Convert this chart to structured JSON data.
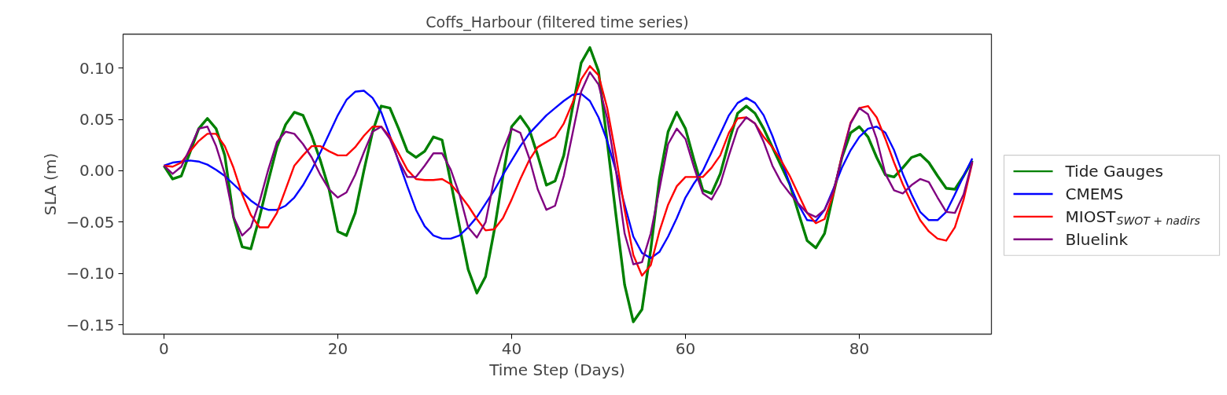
{
  "chart_data": {
    "type": "line",
    "title": "Coffs_Harbour (filtered time series)",
    "xlabel": "Time Step (Days)",
    "ylabel": "SLA (m)",
    "x": [
      0,
      1,
      2,
      3,
      4,
      5,
      6,
      7,
      8,
      9,
      10,
      11,
      12,
      13,
      14,
      15,
      16,
      17,
      18,
      19,
      20,
      21,
      22,
      23,
      24,
      25,
      26,
      27,
      28,
      29,
      30,
      31,
      32,
      33,
      34,
      35,
      36,
      37,
      38,
      39,
      40,
      41,
      42,
      43,
      44,
      45,
      46,
      47,
      48,
      49,
      50,
      51,
      52,
      53,
      54,
      55,
      56,
      57,
      58,
      59,
      60,
      61,
      62,
      63,
      64,
      65,
      66,
      67,
      68,
      69,
      70,
      71,
      72,
      73,
      74,
      75,
      76,
      77,
      78,
      79,
      80,
      81,
      82,
      83,
      84,
      85,
      86,
      87,
      88,
      89,
      90,
      91,
      92,
      93
    ],
    "xlim": [
      -4.7,
      95.2
    ],
    "xticks": [
      0,
      20,
      40,
      60,
      80
    ],
    "ylim": [
      -0.159,
      0.133
    ],
    "yticks": [
      {
        "value": -0.15,
        "label": "−0.15"
      },
      {
        "value": -0.1,
        "label": "−0.10"
      },
      {
        "value": -0.05,
        "label": "−0.05"
      },
      {
        "value": 0,
        "label": "0.00"
      },
      {
        "value": 0.05,
        "label": "0.05"
      },
      {
        "value": 0.1,
        "label": "0.10"
      }
    ],
    "grid": false,
    "legend": "right",
    "line_style": "solid",
    "series": [
      {
        "name": "Tide Gauges",
        "color": "#008000",
        "values": [
          0.005,
          -0.008,
          -0.005,
          0.018,
          0.041,
          0.051,
          0.041,
          0.015,
          -0.045,
          -0.074,
          -0.076,
          -0.045,
          -0.01,
          0.023,
          0.045,
          0.057,
          0.054,
          0.034,
          0.01,
          -0.018,
          -0.059,
          -0.063,
          -0.041,
          0.0,
          0.038,
          0.063,
          0.061,
          0.041,
          0.019,
          0.013,
          0.019,
          0.033,
          0.03,
          -0.011,
          -0.054,
          -0.096,
          -0.119,
          -0.103,
          -0.058,
          -0.005,
          0.043,
          0.053,
          0.041,
          0.015,
          -0.014,
          -0.01,
          0.015,
          0.061,
          0.105,
          0.12,
          0.097,
          0.028,
          -0.043,
          -0.111,
          -0.147,
          -0.135,
          -0.077,
          -0.008,
          0.038,
          0.057,
          0.041,
          0.01,
          -0.019,
          -0.022,
          -0.003,
          0.028,
          0.056,
          0.063,
          0.056,
          0.041,
          0.023,
          0.005,
          -0.013,
          -0.041,
          -0.068,
          -0.075,
          -0.061,
          -0.023,
          0.013,
          0.037,
          0.043,
          0.033,
          0.013,
          -0.004,
          -0.006,
          0.003,
          0.013,
          0.016,
          0.008,
          -0.005,
          -0.017,
          -0.018,
          -0.005,
          0.01
        ]
      },
      {
        "name": "CMEMS",
        "color": "#0000ff",
        "values": [
          0.005,
          0.008,
          0.009,
          0.01,
          0.009,
          0.006,
          0.001,
          -0.005,
          -0.013,
          -0.021,
          -0.029,
          -0.035,
          -0.038,
          -0.038,
          -0.034,
          -0.026,
          -0.014,
          0.001,
          0.018,
          0.036,
          0.054,
          0.069,
          0.077,
          0.078,
          0.071,
          0.057,
          0.034,
          0.009,
          -0.015,
          -0.038,
          -0.054,
          -0.063,
          -0.066,
          -0.066,
          -0.063,
          -0.055,
          -0.045,
          -0.032,
          -0.019,
          -0.004,
          0.01,
          0.024,
          0.036,
          0.045,
          0.054,
          0.061,
          0.068,
          0.074,
          0.075,
          0.068,
          0.052,
          0.029,
          0.0,
          -0.033,
          -0.064,
          -0.08,
          -0.085,
          -0.079,
          -0.064,
          -0.046,
          -0.026,
          -0.012,
          0.0,
          0.018,
          0.036,
          0.054,
          0.066,
          0.071,
          0.066,
          0.054,
          0.034,
          0.011,
          -0.013,
          -0.033,
          -0.048,
          -0.049,
          -0.038,
          -0.018,
          0.003,
          0.02,
          0.033,
          0.041,
          0.043,
          0.037,
          0.02,
          -0.003,
          -0.023,
          -0.04,
          -0.048,
          -0.048,
          -0.04,
          -0.023,
          -0.005,
          0.012
        ]
      },
      {
        "name": "MIOST$_{SWOT + nadirs}$",
        "color": "#ff0000",
        "values": [
          0.005,
          0.004,
          0.008,
          0.019,
          0.029,
          0.036,
          0.036,
          0.024,
          0.003,
          -0.023,
          -0.043,
          -0.055,
          -0.055,
          -0.041,
          -0.018,
          0.005,
          0.015,
          0.024,
          0.024,
          0.019,
          0.015,
          0.015,
          0.023,
          0.034,
          0.043,
          0.043,
          0.033,
          0.017,
          0.001,
          -0.008,
          -0.009,
          -0.009,
          -0.008,
          -0.013,
          -0.023,
          -0.034,
          -0.047,
          -0.058,
          -0.057,
          -0.046,
          -0.028,
          -0.008,
          0.01,
          0.023,
          0.028,
          0.033,
          0.046,
          0.066,
          0.089,
          0.102,
          0.093,
          0.061,
          0.015,
          -0.038,
          -0.082,
          -0.102,
          -0.092,
          -0.059,
          -0.033,
          -0.015,
          -0.006,
          -0.006,
          -0.006,
          0.003,
          0.015,
          0.037,
          0.051,
          0.052,
          0.046,
          0.033,
          0.023,
          0.01,
          -0.005,
          -0.023,
          -0.041,
          -0.051,
          -0.047,
          -0.023,
          0.015,
          0.047,
          0.061,
          0.063,
          0.052,
          0.031,
          0.008,
          -0.013,
          -0.031,
          -0.048,
          -0.059,
          -0.066,
          -0.068,
          -0.055,
          -0.028,
          0.008
        ]
      },
      {
        "name": "Bluelink",
        "color": "#800080",
        "values": [
          0.005,
          -0.003,
          0.004,
          0.022,
          0.041,
          0.043,
          0.024,
          -0.003,
          -0.045,
          -0.063,
          -0.055,
          -0.03,
          0.001,
          0.028,
          0.038,
          0.036,
          0.026,
          0.013,
          -0.004,
          -0.018,
          -0.026,
          -0.021,
          -0.004,
          0.018,
          0.038,
          0.043,
          0.031,
          0.01,
          -0.006,
          -0.006,
          0.005,
          0.017,
          0.017,
          0.001,
          -0.023,
          -0.055,
          -0.065,
          -0.05,
          -0.008,
          0.02,
          0.041,
          0.037,
          0.013,
          -0.018,
          -0.038,
          -0.034,
          -0.005,
          0.036,
          0.077,
          0.096,
          0.084,
          0.051,
          0.0,
          -0.061,
          -0.091,
          -0.089,
          -0.061,
          -0.018,
          0.026,
          0.041,
          0.031,
          0.003,
          -0.022,
          -0.028,
          -0.013,
          0.015,
          0.041,
          0.052,
          0.046,
          0.028,
          0.005,
          -0.011,
          -0.022,
          -0.032,
          -0.041,
          -0.045,
          -0.038,
          -0.02,
          0.013,
          0.046,
          0.061,
          0.055,
          0.031,
          -0.003,
          -0.019,
          -0.022,
          -0.014,
          -0.008,
          -0.011,
          -0.026,
          -0.04,
          -0.041,
          -0.023,
          0.009
        ]
      }
    ]
  }
}
